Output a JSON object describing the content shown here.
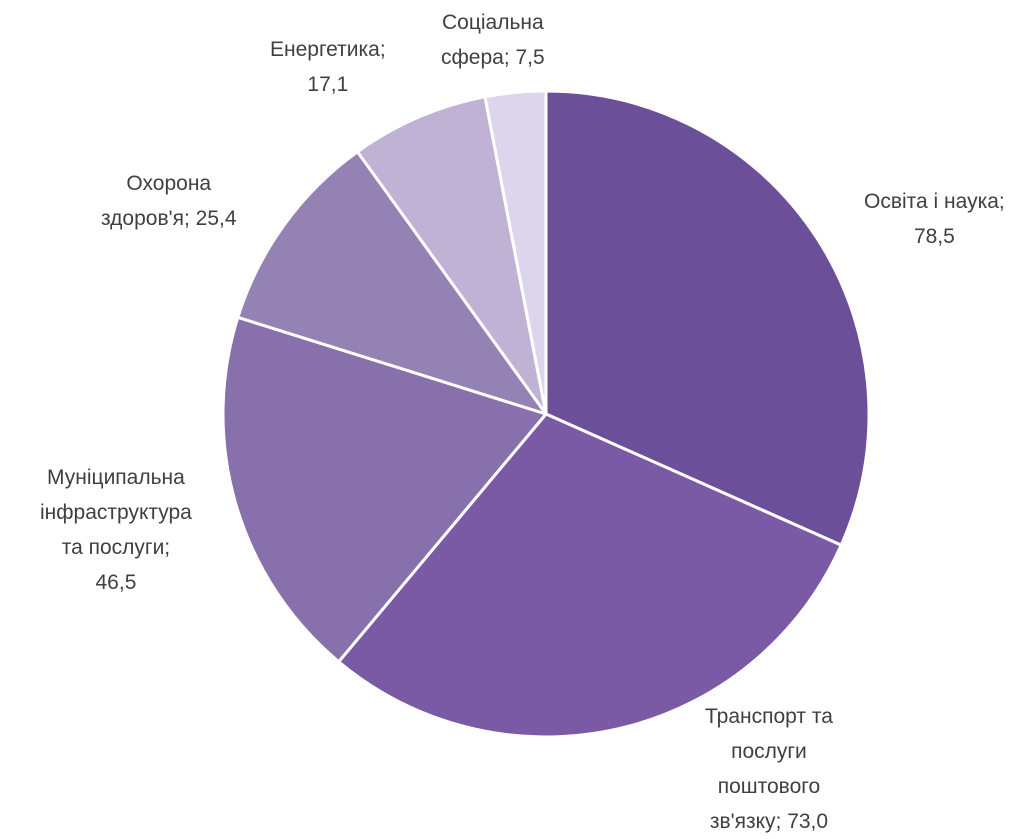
{
  "chart_data": {
    "type": "pie",
    "start": "12 o'clock",
    "direction": "clockwise",
    "legend": "none",
    "data_labels": "category; value",
    "slices": [
      {
        "name": "Освіта і наука",
        "value": 78.5,
        "color": "#6c4f99",
        "label_lines": [
          "Освіта і наука;",
          "78,5"
        ]
      },
      {
        "name": "Транспорт та послуги поштового зв'язку",
        "value": 73.0,
        "color": "#7a59a5",
        "label_lines": [
          "Транспорт та",
          "послуги",
          "поштового",
          "зв'язку; 73,0"
        ]
      },
      {
        "name": "Муніципальна інфраструктура та послуги",
        "value": 46.5,
        "color": "#8770ac",
        "label_lines": [
          "Муніципальна",
          "інфраструктура",
          "та послуги;",
          "46,5"
        ]
      },
      {
        "name": "Охорона здоров'я",
        "value": 25.4,
        "color": "#9482b5",
        "label_lines": [
          "Охорона",
          "здоров'я; 25,4"
        ]
      },
      {
        "name": "Енергетика",
        "value": 17.1,
        "color": "#c0b2d4",
        "label_lines": [
          "Енергетика;",
          "17,1"
        ]
      },
      {
        "name": "Соціальна сфера",
        "value": 7.5,
        "color": "#ddd5ec",
        "label_lines": [
          "Соціальна",
          "сфера; 7,5"
        ]
      }
    ]
  }
}
